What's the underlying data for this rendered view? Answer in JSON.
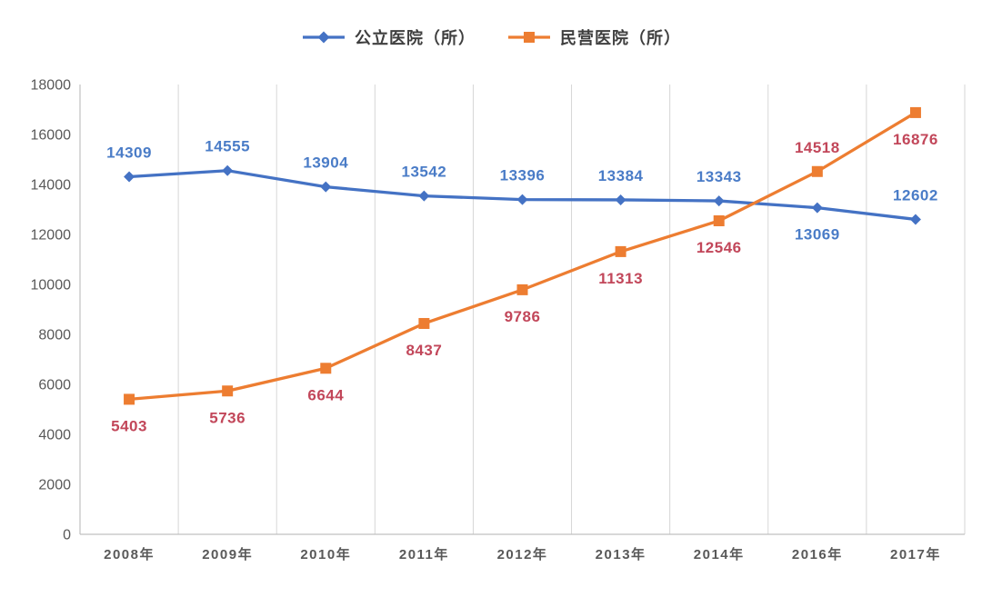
{
  "chart_data": {
    "type": "line",
    "categories": [
      "2008年",
      "2009年",
      "2010年",
      "2011年",
      "2012年",
      "2013年",
      "2014年",
      "2016年",
      "2017年"
    ],
    "series": [
      {
        "name": "公立医院（所）",
        "marker": "diamond",
        "color": "#4472C4",
        "label_color": "#4A7CC7",
        "values": [
          14309,
          14555,
          13904,
          13542,
          13396,
          13384,
          13343,
          13069,
          12602
        ],
        "label_positions": [
          "above",
          "above",
          "above",
          "above",
          "above",
          "above",
          "above",
          "below",
          "above"
        ]
      },
      {
        "name": "民营医院（所）",
        "marker": "square",
        "color": "#ED7D31",
        "label_color": "#C2475A",
        "values": [
          5403,
          5736,
          6644,
          8437,
          9786,
          11313,
          12546,
          14518,
          16876
        ],
        "label_positions": [
          "below",
          "below",
          "below",
          "below",
          "below",
          "below",
          "below",
          "above",
          "below"
        ]
      }
    ],
    "title": "",
    "xlabel": "",
    "ylabel": "",
    "ylim": [
      0,
      18000
    ],
    "ytick_interval": 2000,
    "ytick_labels": [
      "0",
      "2000",
      "4000",
      "6000",
      "8000",
      "10000",
      "12000",
      "14000",
      "16000",
      "18000"
    ],
    "grid": "vertical-only",
    "legend_position": "top-center",
    "gridline_color": "#D6D6D6",
    "axis_color": "#C0C0C0",
    "tick_label_color": "#595959"
  }
}
